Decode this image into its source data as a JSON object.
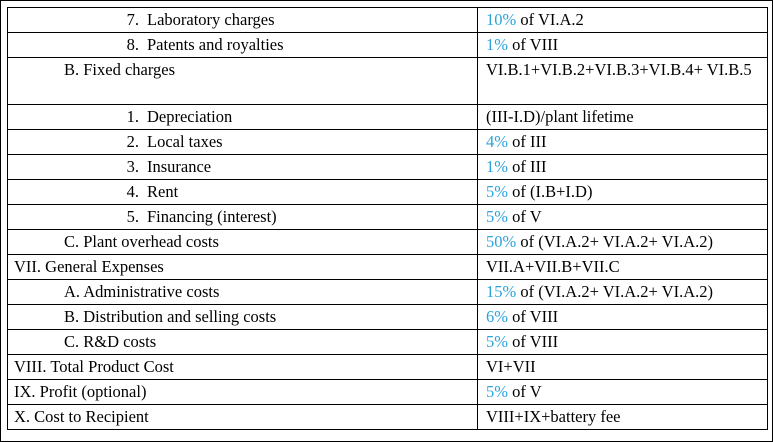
{
  "rows": [
    {
      "num": "7.",
      "label": "Laboratory charges",
      "pct": "10%",
      "formula": " of VI.A.2"
    },
    {
      "num": "8.",
      "label": "Patents and royalties",
      "pct": "1%",
      "formula": " of VIII"
    },
    {
      "label": "B. Fixed charges",
      "formula": "VI.B.1+VI.B.2+VI.B.3+VI.B.4+ VI.B.5"
    },
    {
      "num": "1.",
      "label": "Depreciation",
      "formula": "(III-I.D)/plant lifetime"
    },
    {
      "num": "2.",
      "label": "Local taxes",
      "pct": "4%",
      "formula": " of III"
    },
    {
      "num": "3.",
      "label": "Insurance",
      "pct": "1%",
      "formula": " of III"
    },
    {
      "num": "4.",
      "label": "Rent",
      "pct": "5%",
      "formula": " of (I.B+I.D)"
    },
    {
      "num": "5.",
      "label": "Financing (interest)",
      "pct": "5%",
      "formula": " of V"
    },
    {
      "label": "C. Plant overhead costs",
      "pct": "50%",
      "formula": " of (VI.A.2+ VI.A.2+ VI.A.2)"
    },
    {
      "label": "VII. General Expenses",
      "formula": "VII.A+VII.B+VII.C"
    },
    {
      "label": "A. Administrative costs",
      "pct": "15%",
      "formula": " of (VI.A.2+ VI.A.2+ VI.A.2)"
    },
    {
      "label": "B. Distribution and selling costs",
      "pct": "6%",
      "formula": " of VIII"
    },
    {
      "label": "C. R&D costs",
      "pct": "5%",
      "formula": " of VIII"
    },
    {
      "label": "VIII. Total Product Cost",
      "formula": "VI+VII"
    },
    {
      "label": "IX. Profit (optional)",
      "pct": "5%",
      "formula": " of V"
    },
    {
      "label": "X. Cost to Recipient",
      "formula": "VIII+IX+battery fee"
    }
  ],
  "colors": {
    "percentage": "#29a3dc",
    "text": "#000000",
    "border": "#000000"
  }
}
